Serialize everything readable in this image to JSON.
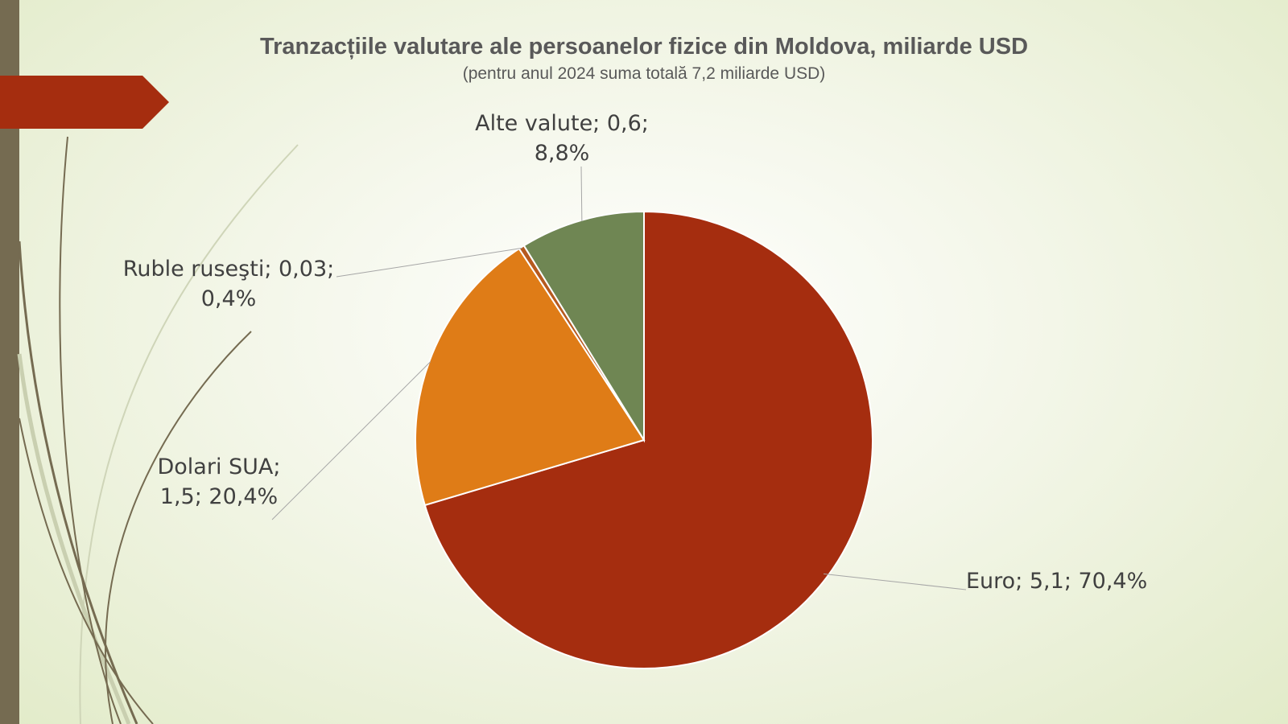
{
  "chart_data": {
    "type": "pie",
    "title": "Tranzacțiile valutare ale persoanelor fizice din Moldova, miliarde USD",
    "subtitle": "(pentru anul 2024 suma totală 7,2 miliarde USD)",
    "slices": [
      {
        "name": "Euro",
        "value": 5.1,
        "percent": 70.4,
        "color": "#a52d0f",
        "label_lines": [
          "Euro; 5,1; 70,4%"
        ]
      },
      {
        "name": "Dolari SUA",
        "value": 1.5,
        "percent": 20.4,
        "color": "#df7c17",
        "label_lines": [
          "Dolari SUA;",
          "1,5; 20,4%"
        ]
      },
      {
        "name": "Ruble rusești",
        "value": 0.03,
        "percent": 0.4,
        "color": "#b65a1f",
        "label_lines": [
          "Ruble ruseşti; 0,03;",
          "0,4%"
        ]
      },
      {
        "name": "Alte valute",
        "value": 0.6,
        "percent": 8.8,
        "color": "#6f8653",
        "label_lines": [
          "Alte valute; 0,6;",
          "8,8%"
        ]
      }
    ]
  },
  "theme": {
    "left_bar": "#756b51",
    "accent": "#a52d0f"
  }
}
